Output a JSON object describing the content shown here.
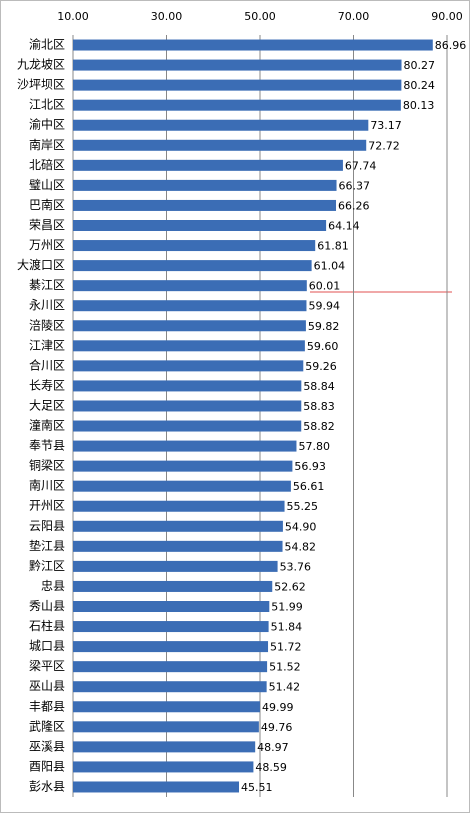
{
  "chart_data": {
    "type": "bar",
    "orientation": "horizontal",
    "categories": [
      "渝北区",
      "九龙坡区",
      "沙坪坝区",
      "江北区",
      "渝中区",
      "南岸区",
      "北碚区",
      "璧山区",
      "巴南区",
      "荣昌区",
      "万州区",
      "大渡口区",
      "綦江区",
      "永川区",
      "涪陵区",
      "江津区",
      "合川区",
      "长寿区",
      "大足区",
      "潼南区",
      "奉节县",
      "铜梁区",
      "南川区",
      "开州区",
      "云阳县",
      "垫江县",
      "黔江区",
      "忠县",
      "秀山县",
      "石柱县",
      "城口县",
      "梁平区",
      "巫山县",
      "丰都县",
      "武隆区",
      "巫溪县",
      "酉阳县",
      "彭水县"
    ],
    "values": [
      86.96,
      80.27,
      80.24,
      80.13,
      73.17,
      72.72,
      67.74,
      66.37,
      66.26,
      64.14,
      61.81,
      61.04,
      60.01,
      59.94,
      59.82,
      59.6,
      59.26,
      58.84,
      58.83,
      58.82,
      57.8,
      56.93,
      56.61,
      55.25,
      54.9,
      54.82,
      53.76,
      52.62,
      51.99,
      51.84,
      51.72,
      51.52,
      51.42,
      49.99,
      49.76,
      48.97,
      48.59,
      45.51
    ],
    "value_labels": [
      "86.96",
      "80.27",
      "80.24",
      "80.13",
      "73.17",
      "72.72",
      "67.74",
      "66.37",
      "66.26",
      "64.14",
      "61.81",
      "61.04",
      "60.01",
      "59.94",
      "59.82",
      "59.60",
      "59.26",
      "58.84",
      "58.83",
      "58.82",
      "57.80",
      "56.93",
      "56.61",
      "55.25",
      "54.90",
      "54.82",
      "53.76",
      "52.62",
      "51.99",
      "51.84",
      "51.72",
      "51.52",
      "51.42",
      "49.99",
      "49.76",
      "48.97",
      "48.59",
      "45.51"
    ],
    "color": "#3b6db5",
    "xlim": [
      10,
      90
    ],
    "xticks": [
      {
        "value": 10,
        "label": "10.00"
      },
      {
        "value": 30,
        "label": "30.00"
      },
      {
        "value": 50,
        "label": "50.00"
      },
      {
        "value": 70,
        "label": "70.00"
      },
      {
        "value": 90,
        "label": "90.00"
      }
    ],
    "grid": true
  }
}
